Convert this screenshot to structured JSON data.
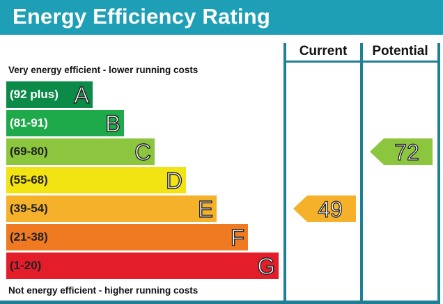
{
  "title": "Energy Efficiency Rating",
  "columns": {
    "current": "Current",
    "potential": "Potential"
  },
  "captions": {
    "top": "Very energy efficient - lower running costs",
    "bottom": "Not energy efficient - higher running costs"
  },
  "colors": {
    "header": "#1f9fb5",
    "frame": "#1e7f95"
  },
  "chart_data": {
    "type": "bar",
    "title": "Energy Efficiency Rating",
    "bands": [
      {
        "range": "(92 plus)",
        "letter": "A",
        "color": "#0c8a47",
        "text_color": "#ffffff"
      },
      {
        "range": "(81-91)",
        "letter": "B",
        "color": "#1ea94a",
        "text_color": "#ffffff"
      },
      {
        "range": "(69-80)",
        "letter": "C",
        "color": "#8cc63f",
        "text_color": "#222222"
      },
      {
        "range": "(55-68)",
        "letter": "D",
        "color": "#f2e312",
        "text_color": "#222222"
      },
      {
        "range": "(39-54)",
        "letter": "E",
        "color": "#f6b12b",
        "text_color": "#222222"
      },
      {
        "range": "(21-38)",
        "letter": "F",
        "color": "#ef7a21",
        "text_color": "#222222"
      },
      {
        "range": "(1-20)",
        "letter": "G",
        "color": "#e41d2a",
        "text_color": "#222222"
      }
    ],
    "series": [
      {
        "name": "Current",
        "value": 49,
        "band": "E",
        "color": "#f6b12b"
      },
      {
        "name": "Potential",
        "value": 72,
        "band": "C",
        "color": "#8cc63f"
      }
    ]
  }
}
